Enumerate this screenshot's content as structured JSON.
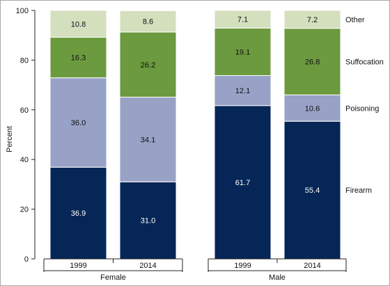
{
  "chart_data": {
    "type": "bar",
    "stacked": true,
    "orientation": "vertical",
    "ylabel": "Percent",
    "ylim": [
      0,
      100
    ],
    "yticks": [
      0,
      20,
      40,
      60,
      80,
      100
    ],
    "grid": false,
    "legend_placement": "right (labels beside the last bar)",
    "groups": [
      {
        "name": "Female",
        "categories": [
          "1999",
          "2014"
        ]
      },
      {
        "name": "Male",
        "categories": [
          "1999",
          "2014"
        ]
      }
    ],
    "categories": [
      "1999",
      "2014",
      "1999",
      "2014"
    ],
    "series": [
      {
        "name": "Firearm",
        "color": "#062657",
        "label_color": "#ffffff",
        "values": [
          36.9,
          31.0,
          61.7,
          55.4
        ]
      },
      {
        "name": "Poisoning",
        "color": "#98a2c6",
        "label_color": "#111111",
        "values": [
          36.0,
          34.1,
          12.1,
          10.6
        ]
      },
      {
        "name": "Suffocation",
        "color": "#6c9a3e",
        "label_color": "#111111",
        "values": [
          16.3,
          26.2,
          19.1,
          26.8
        ]
      },
      {
        "name": "Other",
        "color": "#d4dfbe",
        "label_color": "#111111",
        "values": [
          10.8,
          8.6,
          7.1,
          7.2
        ]
      }
    ],
    "value_labels": [
      [
        "36.9",
        "31.0",
        "61.7",
        "55.4"
      ],
      [
        "36.0",
        "34.1",
        "12.1",
        "10.6"
      ],
      [
        "16.3",
        "26.2",
        "19.1",
        "26.8"
      ],
      [
        "10.8",
        "8.6",
        "7.1",
        "7.2"
      ]
    ]
  }
}
